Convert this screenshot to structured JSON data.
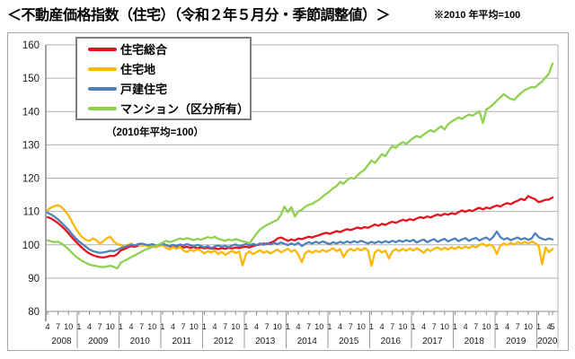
{
  "header": {
    "title": "＜不動産価格指数（住宅）（令和２年５月分・季節調整値）＞",
    "note": "※2010 年平均=100"
  },
  "legend_note": "（2010年平均=100）",
  "chart_data": {
    "type": "line",
    "title": "不動産価格指数（住宅）",
    "x_unit": "month",
    "x_start": "2008-04",
    "x_end": "2020-05",
    "n_points": 146,
    "ylim": [
      80,
      160
    ],
    "ytick_step": 10,
    "grid": true,
    "legend_position": "top-left",
    "x_axis_years": [
      {
        "year": "2008",
        "months": [
          4,
          7,
          10
        ]
      },
      {
        "year": "2009",
        "months": [
          1,
          4,
          7,
          10
        ]
      },
      {
        "year": "2010",
        "months": [
          1,
          4,
          7,
          10
        ]
      },
      {
        "year": "2011",
        "months": [
          1,
          4,
          7,
          10
        ]
      },
      {
        "year": "2012",
        "months": [
          1,
          4,
          7,
          10
        ]
      },
      {
        "year": "2013",
        "months": [
          1,
          4,
          7,
          10
        ]
      },
      {
        "year": "2014",
        "months": [
          1,
          4,
          7,
          10
        ]
      },
      {
        "year": "2015",
        "months": [
          1,
          4,
          7,
          10
        ]
      },
      {
        "year": "2016",
        "months": [
          1,
          4,
          7,
          10
        ]
      },
      {
        "year": "2017",
        "months": [
          1,
          4,
          7,
          10
        ]
      },
      {
        "year": "2018",
        "months": [
          1,
          4,
          7,
          10
        ]
      },
      {
        "year": "2019",
        "months": [
          1,
          4,
          7,
          10
        ]
      },
      {
        "year": "2020",
        "months": [
          1,
          4,
          5
        ]
      }
    ],
    "series": [
      {
        "name": "住宅総合",
        "color": "#e8121e",
        "values": [
          108.3,
          107.9,
          107.2,
          106.5,
          105.6,
          104.6,
          103.4,
          102.2,
          101.1,
          100.0,
          99.0,
          98.1,
          97.4,
          96.9,
          96.5,
          96.3,
          96.2,
          96.4,
          96.7,
          96.6,
          97.2,
          98.3,
          98.7,
          99.2,
          99.6,
          99.4,
          99.8,
          100.1,
          99.9,
          99.7,
          99.9,
          99.6,
          99.8,
          100.4,
          99.9,
          99.5,
          99.6,
          99.3,
          99.5,
          99.2,
          99.4,
          99.1,
          99.3,
          99.0,
          99.2,
          98.9,
          99.1,
          98.8,
          99.0,
          98.7,
          99.0,
          98.8,
          99.1,
          98.9,
          99.2,
          99.0,
          99.3,
          99.4,
          99.2,
          99.6,
          99.9,
          100.1,
          100.4,
          100.2,
          100.6,
          101.0,
          101.9,
          102.2,
          101.7,
          101.2,
          101.6,
          101.3,
          101.9,
          101.7,
          102.1,
          102.4,
          102.2,
          102.6,
          102.9,
          103.3,
          103.6,
          103.3,
          103.7,
          104.1,
          103.8,
          104.3,
          104.7,
          104.4,
          104.8,
          105.2,
          104.9,
          105.3,
          105.1,
          105.6,
          106.1,
          105.7,
          106.3,
          106.0,
          106.5,
          106.9,
          106.6,
          107.1,
          107.5,
          107.2,
          107.7,
          107.4,
          107.9,
          108.3,
          108.0,
          108.5,
          108.2,
          108.7,
          109.1,
          108.8,
          109.3,
          109.0,
          109.5,
          109.2,
          109.8,
          110.3,
          109.9,
          110.4,
          110.1,
          110.7,
          111.1,
          110.6,
          111.2,
          110.9,
          111.4,
          111.8,
          111.5,
          112.1,
          112.5,
          112.2,
          112.8,
          113.2,
          113.8,
          113.4,
          114.6,
          114.1,
          113.7,
          112.8,
          113.1,
          113.5,
          113.6,
          114.2
        ]
      },
      {
        "name": "住宅地",
        "color": "#fcb708",
        "values": [
          110.4,
          111.2,
          111.6,
          111.9,
          111.3,
          110.2,
          108.8,
          106.9,
          105.0,
          103.4,
          102.2,
          101.5,
          101.2,
          101.9,
          101.4,
          100.3,
          101.1,
          102.0,
          102.4,
          101.0,
          100.2,
          100.0,
          99.4,
          99.9,
          100.4,
          99.8,
          100.2,
          99.7,
          100.0,
          99.4,
          99.7,
          99.2,
          99.6,
          99.9,
          99.1,
          98.6,
          99.3,
          98.8,
          99.4,
          98.3,
          97.8,
          98.5,
          98.1,
          98.7,
          98.2,
          97.4,
          98.1,
          97.7,
          98.3,
          97.2,
          97.9,
          97.0,
          97.6,
          98.2,
          97.5,
          98.0,
          93.8,
          97.3,
          98.0,
          97.2,
          97.8,
          98.4,
          97.6,
          98.1,
          97.4,
          98.0,
          98.6,
          97.7,
          98.3,
          98.8,
          97.9,
          98.5,
          97.0,
          94.8,
          97.5,
          98.2,
          97.6,
          98.3,
          97.8,
          98.5,
          97.9,
          98.4,
          99.0,
          98.1,
          98.7,
          96.3,
          98.0,
          98.8,
          98.2,
          98.9,
          98.3,
          99.0,
          98.4,
          93.7,
          97.8,
          98.5,
          97.7,
          98.3,
          95.9,
          98.0,
          98.7,
          98.1,
          98.8,
          98.2,
          98.9,
          98.3,
          99.0,
          98.4,
          97.6,
          98.7,
          98.1,
          98.8,
          99.2,
          98.5,
          99.1,
          98.6,
          99.3,
          98.7,
          99.4,
          98.9,
          99.5,
          99.0,
          99.7,
          99.2,
          99.9,
          100.3,
          99.6,
          100.1,
          99.5,
          97.2,
          99.8,
          100.4,
          99.9,
          100.6,
          100.1,
          100.8,
          100.3,
          100.9,
          100.4,
          101.0,
          100.5,
          99.8,
          94.2,
          99.2,
          97.8,
          98.8
        ]
      },
      {
        "name": "戸建住宅",
        "color": "#4f81bd",
        "values": [
          109.6,
          109.1,
          108.4,
          107.6,
          106.6,
          105.6,
          104.5,
          103.2,
          102.0,
          101.0,
          100.2,
          99.4,
          98.6,
          98.1,
          97.8,
          97.6,
          97.7,
          97.9,
          98.2,
          98.1,
          98.5,
          99.0,
          99.3,
          99.7,
          100.0,
          99.8,
          100.2,
          100.4,
          100.1,
          99.9,
          100.2,
          99.8,
          100.0,
          100.3,
          99.9,
          99.6,
          100.0,
          99.7,
          100.1,
          99.8,
          100.2,
          99.9,
          99.6,
          100.0,
          99.7,
          99.2,
          99.6,
          99.0,
          99.5,
          99.8,
          99.4,
          99.7,
          99.3,
          99.8,
          100.1,
          99.6,
          99.9,
          100.2,
          99.8,
          100.3,
          99.9,
          100.4,
          100.0,
          100.5,
          100.1,
          100.6,
          100.2,
          100.7,
          100.3,
          99.9,
          100.4,
          100.0,
          100.6,
          99.6,
          100.3,
          100.8,
          100.4,
          100.9,
          100.5,
          101.0,
          100.6,
          100.2,
          100.8,
          100.4,
          100.9,
          100.5,
          101.0,
          100.6,
          101.1,
          100.7,
          101.2,
          100.8,
          100.4,
          100.9,
          100.5,
          101.0,
          100.6,
          101.1,
          100.7,
          101.2,
          100.8,
          101.3,
          100.9,
          101.4,
          101.0,
          101.5,
          100.7,
          101.2,
          101.6,
          100.8,
          101.3,
          101.7,
          100.9,
          101.4,
          101.8,
          101.0,
          101.5,
          101.9,
          101.1,
          101.6,
          102.0,
          101.2,
          101.7,
          102.1,
          101.3,
          101.8,
          102.2,
          101.4,
          102.4,
          104.0,
          102.3,
          101.6,
          102.0,
          101.4,
          101.8,
          102.2,
          101.6,
          102.0,
          101.5,
          101.9,
          103.5,
          102.3,
          101.8,
          101.5,
          101.9,
          101.6
        ]
      },
      {
        "name": "マンション（区分所有）",
        "color": "#8ed14f",
        "values": [
          101.3,
          101.0,
          100.8,
          100.9,
          100.4,
          99.6,
          98.6,
          97.6,
          96.6,
          95.8,
          95.1,
          94.6,
          94.1,
          93.8,
          93.6,
          93.4,
          93.3,
          93.5,
          93.7,
          93.4,
          92.9,
          94.6,
          95.2,
          95.7,
          96.3,
          96.8,
          97.4,
          98.0,
          98.5,
          98.9,
          99.3,
          99.7,
          100.1,
          100.6,
          101.2,
          100.8,
          101.1,
          101.5,
          101.9,
          101.6,
          102.0,
          101.7,
          101.4,
          101.8,
          101.5,
          101.9,
          102.3,
          102.0,
          102.4,
          101.8,
          101.5,
          101.2,
          101.6,
          101.3,
          101.7,
          101.4,
          101.0,
          100.8,
          100.5,
          101.9,
          103.4,
          104.6,
          105.3,
          106.0,
          106.5,
          107.0,
          107.5,
          109.0,
          111.5,
          109.8,
          111.3,
          108.5,
          110.0,
          110.5,
          111.4,
          112.0,
          112.3,
          113.0,
          113.5,
          114.5,
          115.3,
          116.0,
          117.0,
          117.6,
          118.9,
          118.3,
          119.4,
          120.1,
          119.8,
          120.9,
          121.8,
          122.5,
          123.9,
          125.3,
          124.6,
          125.9,
          127.2,
          126.6,
          128.3,
          129.6,
          129.1,
          130.2,
          130.8,
          130.3,
          131.2,
          132.0,
          132.7,
          132.2,
          133.1,
          133.8,
          134.4,
          133.9,
          134.8,
          135.6,
          134.6,
          136.2,
          137.0,
          137.6,
          138.2,
          137.8,
          138.5,
          139.1,
          138.7,
          139.4,
          140.1,
          136.6,
          140.6,
          141.3,
          142.2,
          143.3,
          144.2,
          145.2,
          144.4,
          143.8,
          143.5,
          144.6,
          145.6,
          146.4,
          146.9,
          147.4,
          147.2,
          148.2,
          149.0,
          150.2,
          151.4,
          154.4
        ]
      }
    ]
  }
}
